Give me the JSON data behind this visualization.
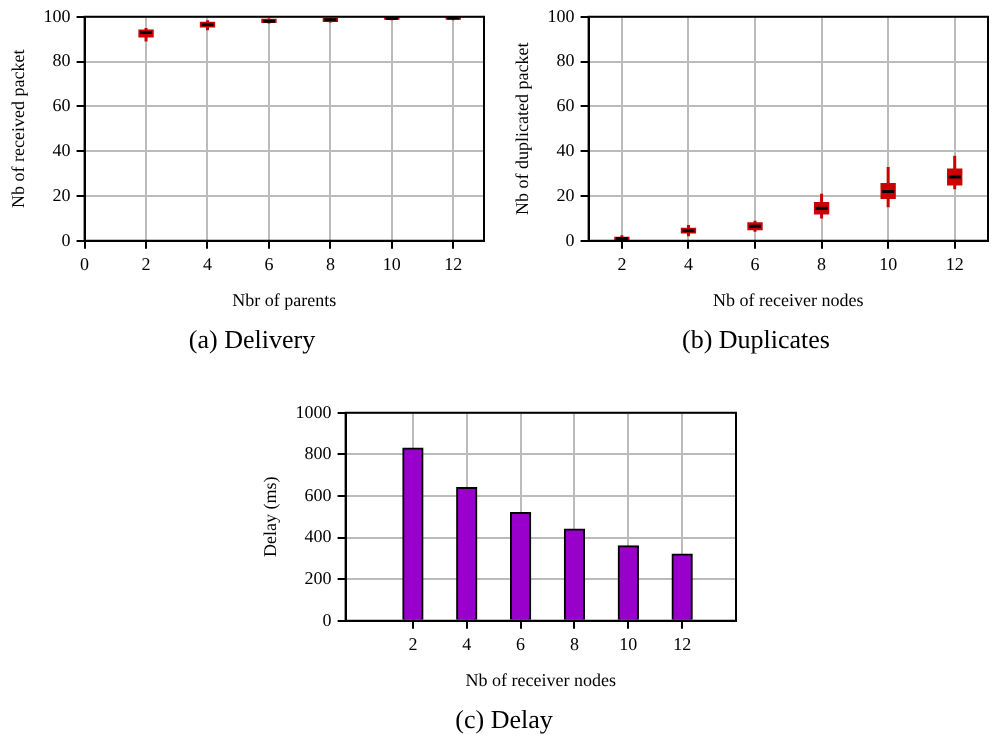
{
  "chart_data": [
    {
      "type": "box",
      "title": "(a) Delivery",
      "xlabel": "Nbr of parents",
      "ylabel": "Nb of received packet",
      "x": [
        2,
        4,
        6,
        8,
        10,
        12
      ],
      "xlim": [
        0,
        13
      ],
      "xticks": [
        0,
        2,
        4,
        6,
        8,
        10,
        12
      ],
      "ylim": [
        0,
        100
      ],
      "yticks": [
        0,
        20,
        40,
        60,
        80,
        100
      ],
      "grid": true,
      "legend": false,
      "color": "#cc0000",
      "boxes": [
        {
          "low": 89,
          "q1": 91,
          "median": 93,
          "q3": 94,
          "high": 95
        },
        {
          "low": 94,
          "q1": 95.5,
          "median": 96.5,
          "q3": 97.5,
          "high": 98.5
        },
        {
          "low": 97,
          "q1": 97.5,
          "median": 98,
          "q3": 98.8,
          "high": 99.2
        },
        {
          "low": 97.5,
          "q1": 98,
          "median": 98.7,
          "q3": 99.2,
          "high": 99.5
        },
        {
          "low": 98.5,
          "q1": 99,
          "median": 99.3,
          "q3": 99.7,
          "high": 100
        },
        {
          "low": 98.5,
          "q1": 99,
          "median": 99.4,
          "q3": 99.8,
          "high": 100
        }
      ]
    },
    {
      "type": "box",
      "title": "(b) Duplicates",
      "xlabel": "Nb of receiver nodes",
      "ylabel": "Nb of duplicated packet",
      "x": [
        2,
        4,
        6,
        8,
        10,
        12
      ],
      "xlim": [
        1,
        13
      ],
      "xticks": [
        2,
        4,
        6,
        8,
        10,
        12
      ],
      "ylim": [
        0,
        100
      ],
      "yticks": [
        0,
        20,
        40,
        60,
        80,
        100
      ],
      "grid": true,
      "legend": false,
      "color": "#cc0000",
      "boxes": [
        {
          "low": 0,
          "q1": 0.5,
          "median": 1,
          "q3": 1.5,
          "high": 2.5
        },
        {
          "low": 2,
          "q1": 3.5,
          "median": 4.5,
          "q3": 5.5,
          "high": 7
        },
        {
          "low": 4,
          "q1": 5,
          "median": 6.5,
          "q3": 8,
          "high": 9
        },
        {
          "low": 10,
          "q1": 12,
          "median": 14.5,
          "q3": 17,
          "high": 21
        },
        {
          "low": 15,
          "q1": 19,
          "median": 22,
          "q3": 25.5,
          "high": 33
        },
        {
          "low": 23,
          "q1": 25,
          "median": 28.5,
          "q3": 32,
          "high": 38
        }
      ]
    },
    {
      "type": "bar",
      "title": "(c) Delay",
      "xlabel": "Nb of receiver nodes",
      "ylabel": "Delay (ms)",
      "x": [
        2,
        4,
        6,
        8,
        10,
        12
      ],
      "xlim": [
        -0.5,
        14
      ],
      "xticks": [
        2,
        4,
        6,
        8,
        10,
        12
      ],
      "ylim": [
        0,
        1000
      ],
      "yticks": [
        0,
        200,
        400,
        600,
        800,
        1000
      ],
      "grid": true,
      "legend": false,
      "color": "#9900cc",
      "values": [
        830,
        640,
        520,
        440,
        360,
        320
      ]
    }
  ]
}
